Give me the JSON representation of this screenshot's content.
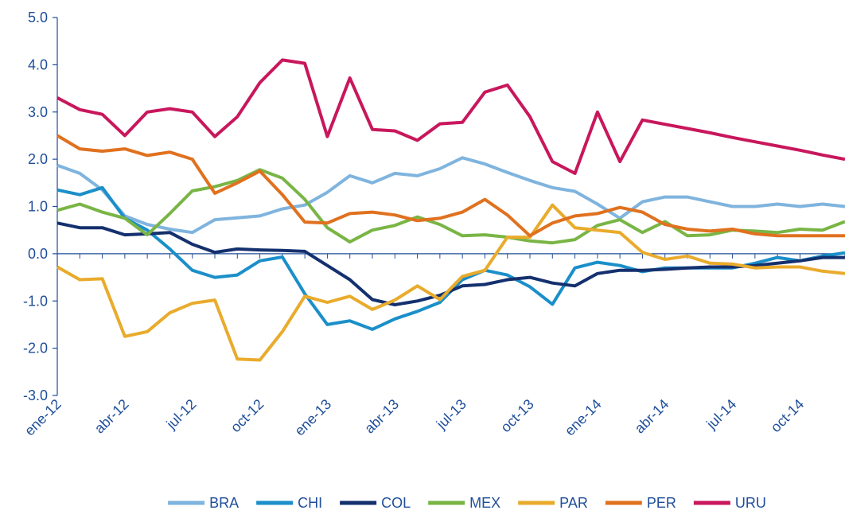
{
  "chart_data": {
    "type": "line",
    "categories": [
      "ene-12",
      null,
      null,
      "abr-12",
      null,
      null,
      "jul-12",
      null,
      null,
      "oct-12",
      null,
      null,
      "ene-13",
      null,
      null,
      "abr-13",
      null,
      null,
      "jul-13",
      null,
      null,
      "oct-13",
      null,
      null,
      "ene-14",
      null,
      null,
      "abr-14",
      null,
      null,
      "jul-14",
      null,
      null,
      "oct-14",
      null,
      null
    ],
    "ylim": [
      -3,
      5
    ],
    "yticks": [
      {
        "value": -3,
        "label": "-3.0"
      },
      {
        "value": -2,
        "label": "-2.0"
      },
      {
        "value": -1,
        "label": "-1.0"
      },
      {
        "value": 0,
        "label": "0.0"
      },
      {
        "value": 1,
        "label": "1.0"
      },
      {
        "value": 2,
        "label": "2.0"
      },
      {
        "value": 3,
        "label": "3.0"
      },
      {
        "value": 4,
        "label": "4.0"
      },
      {
        "value": 5,
        "label": "5.0"
      }
    ],
    "grid": false,
    "legend": "bottom",
    "series": [
      {
        "name": "BRA",
        "color": "#7fb4de",
        "values": [
          1.87,
          1.7,
          1.35,
          0.8,
          0.62,
          0.52,
          0.45,
          0.72,
          0.76,
          0.8,
          0.95,
          1.03,
          1.3,
          1.65,
          1.5,
          1.7,
          1.65,
          1.8,
          2.03,
          1.9,
          1.72,
          1.55,
          1.4,
          1.32,
          1.05,
          0.75,
          1.1,
          1.2,
          1.2,
          1.1,
          1.0,
          1.0,
          1.05,
          1.0,
          1.05,
          1.0
        ]
      },
      {
        "name": "CHI",
        "color": "#1b8fc9",
        "values": [
          1.35,
          1.25,
          1.4,
          0.75,
          0.5,
          0.1,
          -0.35,
          -0.5,
          -0.45,
          -0.15,
          -0.07,
          -0.85,
          -1.5,
          -1.42,
          -1.6,
          -1.38,
          -1.22,
          -1.03,
          -0.55,
          -0.35,
          -0.45,
          -0.7,
          -1.07,
          -0.3,
          -0.18,
          -0.25,
          -0.38,
          -0.3,
          -0.3,
          -0.3,
          -0.3,
          -0.2,
          -0.08,
          -0.15,
          -0.05,
          0.02
        ]
      },
      {
        "name": "COL",
        "color": "#14306e",
        "values": [
          0.65,
          0.55,
          0.55,
          0.4,
          0.42,
          0.45,
          0.2,
          0.03,
          0.1,
          0.08,
          0.07,
          0.05,
          -0.25,
          -0.55,
          -0.97,
          -1.08,
          -1.0,
          -0.88,
          -0.68,
          -0.65,
          -0.55,
          -0.5,
          -0.62,
          -0.68,
          -0.42,
          -0.35,
          -0.35,
          -0.33,
          -0.3,
          -0.28,
          -0.28,
          -0.25,
          -0.2,
          -0.15,
          -0.08,
          -0.08
        ]
      },
      {
        "name": "MEX",
        "color": "#79b545",
        "values": [
          0.92,
          1.05,
          0.88,
          0.75,
          0.4,
          0.85,
          1.33,
          1.42,
          1.55,
          1.78,
          1.6,
          1.15,
          0.55,
          0.25,
          0.5,
          0.6,
          0.78,
          0.62,
          0.38,
          0.4,
          0.35,
          0.27,
          0.23,
          0.3,
          0.6,
          0.72,
          0.45,
          0.68,
          0.38,
          0.4,
          0.5,
          0.48,
          0.45,
          0.52,
          0.5,
          0.68
        ]
      },
      {
        "name": "PAR",
        "color": "#e9ab2c",
        "values": [
          -0.28,
          -0.55,
          -0.53,
          -1.75,
          -1.65,
          -1.25,
          -1.05,
          -0.98,
          -2.23,
          -2.25,
          -1.65,
          -0.9,
          -1.03,
          -0.9,
          -1.18,
          -0.98,
          -0.68,
          -0.97,
          -0.48,
          -0.35,
          0.35,
          0.35,
          1.03,
          0.55,
          0.5,
          0.45,
          0.03,
          -0.12,
          -0.05,
          -0.2,
          -0.22,
          -0.3,
          -0.28,
          -0.28,
          -0.37,
          -0.42
        ]
      },
      {
        "name": "PER",
        "color": "#e0711f",
        "values": [
          2.5,
          2.22,
          2.17,
          2.22,
          2.08,
          2.15,
          2.0,
          1.28,
          1.5,
          1.75,
          1.25,
          0.67,
          0.65,
          0.85,
          0.88,
          0.82,
          0.7,
          0.75,
          0.88,
          1.15,
          0.82,
          0.38,
          0.65,
          0.8,
          0.85,
          0.98,
          0.88,
          0.62,
          0.52,
          0.48,
          0.52,
          0.42,
          0.38,
          0.38,
          0.38,
          0.38
        ]
      },
      {
        "name": "URU",
        "color": "#c8175c",
        "values": [
          3.3,
          3.05,
          2.95,
          2.5,
          3.0,
          3.07,
          3.0,
          2.48,
          2.9,
          3.62,
          4.1,
          4.03,
          2.48,
          3.72,
          2.63,
          2.6,
          2.4,
          2.75,
          2.78,
          3.42,
          3.57,
          2.9,
          1.95,
          1.7,
          3.0,
          1.95,
          2.83,
          2.74,
          2.65,
          2.56,
          2.46,
          2.37,
          2.28,
          2.19,
          2.09,
          2.0
        ]
      }
    ]
  }
}
